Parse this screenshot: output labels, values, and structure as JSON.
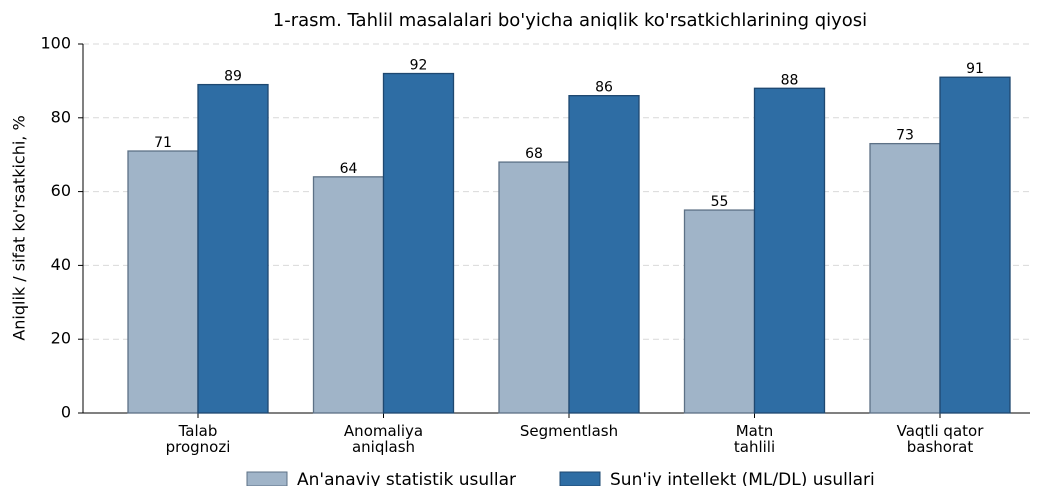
{
  "chart_data": {
    "type": "bar",
    "title": "1-rasm. Tahlil masalalari bo'yicha aniqlik ko'rsatkichlarining qiyosi",
    "ylabel": "Aniqlik / sifat ko'rsatkichi, %",
    "categories": [
      [
        "Talab",
        "prognozi"
      ],
      [
        "Anomaliya",
        "aniqlash"
      ],
      [
        "Segmentlash"
      ],
      [
        "Matn",
        "tahlili"
      ],
      [
        "Vaqtli qator",
        "bashorat"
      ]
    ],
    "series": [
      {
        "name": "An'anaviy statistik usullar",
        "color": "#a0b4c8",
        "edge": "#5d7186",
        "values": [
          71,
          64,
          68,
          55,
          73
        ]
      },
      {
        "name": "Sun'iy intellekt (ML/DL) usullari",
        "color": "#2e6da4",
        "edge": "#1e4870",
        "values": [
          89,
          92,
          86,
          88,
          91
        ]
      }
    ],
    "ylim": [
      0,
      100
    ],
    "yticks": [
      0,
      20,
      40,
      60,
      80,
      100
    ],
    "grid": true,
    "legend": "bottom"
  }
}
